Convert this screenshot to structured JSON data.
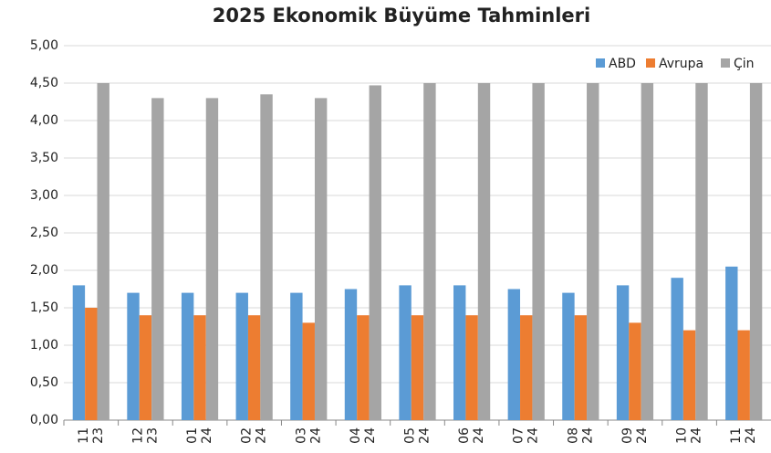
{
  "chart_data": {
    "type": "bar",
    "title": "2025 Ekonomik Büyüme Tahminleri",
    "categories": [
      [
        "11",
        "23"
      ],
      [
        "12",
        "23"
      ],
      [
        "01",
        "24"
      ],
      [
        "02",
        "24"
      ],
      [
        "03",
        "24"
      ],
      [
        "04",
        "24"
      ],
      [
        "05",
        "24"
      ],
      [
        "06",
        "24"
      ],
      [
        "07",
        "24"
      ],
      [
        "08",
        "24"
      ],
      [
        "09",
        "24"
      ],
      [
        "10",
        "24"
      ],
      [
        "11",
        "24"
      ]
    ],
    "series": [
      {
        "name": "ABD",
        "color": "#5b9bd5",
        "values": [
          1.8,
          1.7,
          1.7,
          1.7,
          1.7,
          1.75,
          1.8,
          1.8,
          1.75,
          1.7,
          1.8,
          1.9,
          2.05
        ]
      },
      {
        "name": "Avrupa",
        "color": "#ed7d31",
        "values": [
          1.5,
          1.4,
          1.4,
          1.4,
          1.3,
          1.4,
          1.4,
          1.4,
          1.4,
          1.4,
          1.3,
          1.2,
          1.2
        ]
      },
      {
        "name": "Çin",
        "color": "#a5a5a5",
        "values": [
          4.5,
          4.3,
          4.3,
          4.35,
          4.3,
          4.47,
          4.5,
          4.5,
          4.5,
          4.5,
          4.5,
          4.5,
          4.5
        ]
      }
    ],
    "ylim": [
      0,
      5
    ],
    "yticks": [
      {
        "value": 0,
        "label": "0,00"
      },
      {
        "value": 0.5,
        "label": "0,50"
      },
      {
        "value": 1,
        "label": "1,00"
      },
      {
        "value": 1.5,
        "label": "1,50"
      },
      {
        "value": 2,
        "label": "2,00"
      },
      {
        "value": 2.5,
        "label": "2,50"
      },
      {
        "value": 3,
        "label": "3,00"
      },
      {
        "value": 3.5,
        "label": "3,50"
      },
      {
        "value": 4,
        "label": "4,00"
      },
      {
        "value": 4.5,
        "label": "4,50"
      },
      {
        "value": 5,
        "label": "5,00"
      }
    ],
    "grid": true,
    "legend": "top-right"
  }
}
